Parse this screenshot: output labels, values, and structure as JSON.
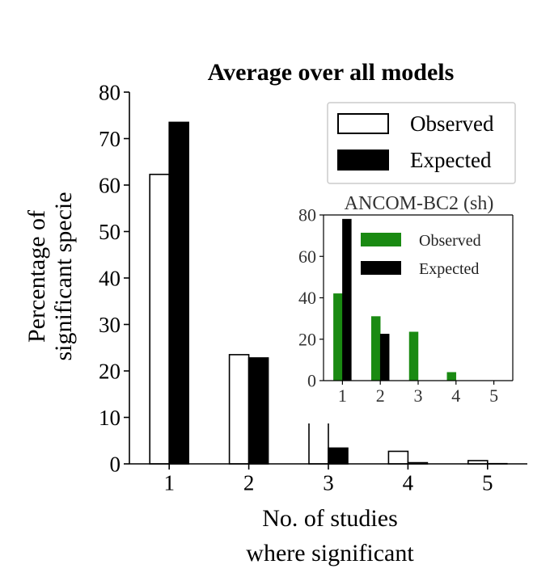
{
  "chart_data": [
    {
      "type": "bar",
      "title": "Average over all models",
      "xlabel_lines": [
        "No. of studies",
        "where significant"
      ],
      "ylabel_lines": [
        "Percentage of",
        "significant specie"
      ],
      "categories": [
        "1",
        "2",
        "3",
        "4",
        "5"
      ],
      "series": [
        {
          "name": "Observed",
          "values": [
            62.3,
            23.5,
            10.7,
            2.7,
            0.7
          ],
          "fill": "#ffffff",
          "stroke": "#000000"
        },
        {
          "name": "Expected",
          "values": [
            73.5,
            22.8,
            3.4,
            0.25,
            0.05
          ],
          "fill": "#000000",
          "stroke": "#000000"
        }
      ],
      "ylim": [
        0,
        80
      ],
      "yticks": [
        "0",
        "10",
        "20",
        "30",
        "40",
        "50",
        "60",
        "70",
        "80"
      ],
      "legend": "top-right",
      "grid": false
    },
    {
      "type": "bar",
      "title": "ANCOM-BC2 (sh)",
      "categories": [
        "1",
        "2",
        "3",
        "4",
        "5"
      ],
      "series": [
        {
          "name": "Observed",
          "values": [
            42,
            31,
            23.5,
            4,
            0
          ],
          "fill": "#1a8a12",
          "stroke": "#1a8a12"
        },
        {
          "name": "Expected",
          "values": [
            78,
            22.5,
            0,
            0,
            0
          ],
          "fill": "#000000",
          "stroke": "#000000"
        }
      ],
      "ylim": [
        0,
        80
      ],
      "yticks": [
        "0",
        "20",
        "40",
        "60",
        "80"
      ],
      "legend": "top-right",
      "grid": false
    }
  ]
}
